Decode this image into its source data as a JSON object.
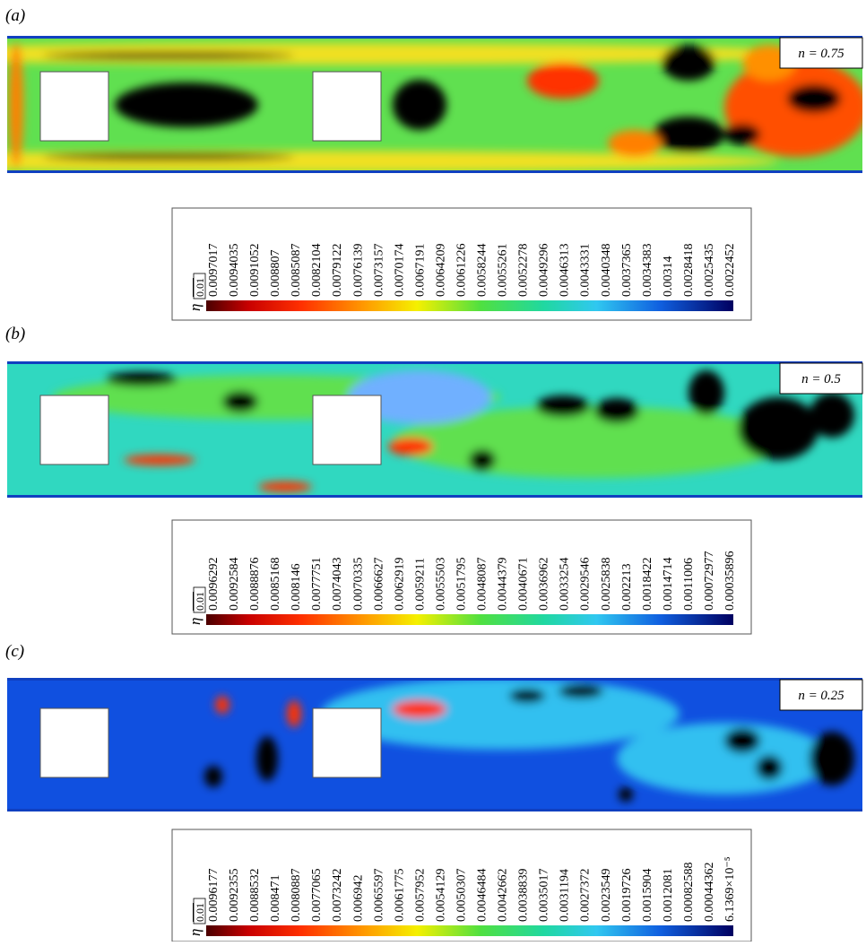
{
  "panels": [
    {
      "label": "(a)",
      "annotation": "n = 0.75",
      "colorbar": {
        "symbol": "η",
        "max": "0.01",
        "ticks": [
          "0.0097017",
          "0.0094035",
          "0.0091052",
          "0.008807",
          "0.0085087",
          "0.0082104",
          "0.0079122",
          "0.0076139",
          "0.0073157",
          "0.0070174",
          "0.0067191",
          "0.0064209",
          "0.0061226",
          "0.0058244",
          "0.0055261",
          "0.0052278",
          "0.0049296",
          "0.0046313",
          "0.0043331",
          "0.0040348",
          "0.0037365",
          "0.0034383",
          "0.00314",
          "0.0028418",
          "0.0025435",
          "0.0022452"
        ]
      }
    },
    {
      "label": "(b)",
      "annotation": "n = 0.5",
      "colorbar": {
        "symbol": "η",
        "max": "0.01",
        "ticks": [
          "0.0096292",
          "0.0092584",
          "0.0088876",
          "0.0085168",
          "0.008146",
          "0.0077751",
          "0.0074043",
          "0.0070335",
          "0.0066627",
          "0.0062919",
          "0.0059211",
          "0.0055503",
          "0.0051795",
          "0.0048087",
          "0.0044379",
          "0.0040671",
          "0.0036962",
          "0.0033254",
          "0.0029546",
          "0.0025838",
          "0.002213",
          "0.0018422",
          "0.0014714",
          "0.0011006",
          "0.00072977",
          "0.00035896"
        ]
      }
    },
    {
      "label": "(c)",
      "annotation": "n = 0.25",
      "colorbar": {
        "symbol": "η",
        "max": "0.01",
        "ticks": [
          "0.0096177",
          "0.0092355",
          "0.0088532",
          "0.008471",
          "0.0080887",
          "0.0077065",
          "0.0073242",
          "0.006942",
          "0.0065597",
          "0.0061775",
          "0.0057952",
          "0.0054129",
          "0.0050307",
          "0.0046484",
          "0.0042662",
          "0.0038839",
          "0.0035017",
          "0.0031194",
          "0.0027372",
          "0.0023549",
          "0.0019726",
          "0.0015904",
          "0.0012081",
          "0.00082588",
          "0.00044362",
          "6.1369×10⁻⁵"
        ]
      }
    }
  ]
}
